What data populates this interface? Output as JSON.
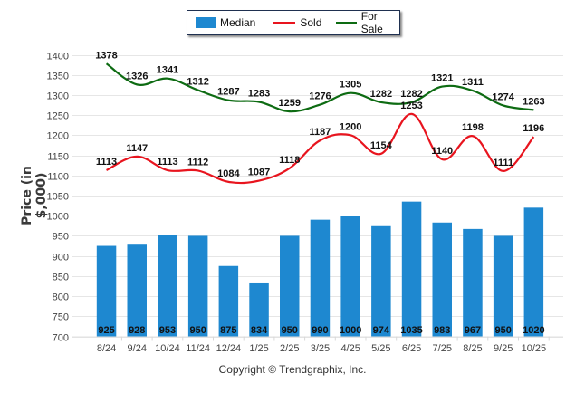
{
  "chart_data": {
    "type": "bar",
    "title": "",
    "xlabel": "",
    "ylabel": "Price (in $,000)",
    "ylim": [
      700,
      1400
    ],
    "ytick_step": 50,
    "yticks": [
      "700",
      "750",
      "800",
      "850",
      "900",
      "950",
      "1000",
      "1050",
      "1100",
      "1150",
      "1200",
      "1250",
      "1300",
      "1350",
      "1400"
    ],
    "grid": true,
    "legend_position": "top-center",
    "categories": [
      "8/24",
      "9/24",
      "10/24",
      "11/24",
      "12/24",
      "1/25",
      "2/25",
      "3/25",
      "4/25",
      "5/25",
      "6/25",
      "7/25",
      "8/25",
      "9/25",
      "10/25"
    ],
    "series": [
      {
        "name": "Median",
        "type": "bar",
        "color": "#1e88d0",
        "values": [
          925,
          928,
          953,
          950,
          875,
          834,
          950,
          990,
          1000,
          974,
          1035,
          983,
          967,
          950,
          1020
        ]
      },
      {
        "name": "Sold",
        "type": "line",
        "color": "#e8141e",
        "values": [
          1113,
          1147,
          1113,
          1112,
          1084,
          1087,
          1118,
          1187,
          1200,
          1154,
          1253,
          1140,
          1198,
          1111,
          1196
        ]
      },
      {
        "name": "For Sale",
        "type": "line",
        "color": "#0d6b12",
        "values": [
          1378,
          1326,
          1341,
          1312,
          1287,
          1283,
          1259,
          1276,
          1305,
          1282,
          1282,
          1321,
          1311,
          1274,
          1263
        ]
      }
    ]
  },
  "legend": {
    "median": "Median",
    "sold": "Sold",
    "for_sale": "For Sale"
  },
  "footer": {
    "copyright": "Copyright © Trendgraphix, Inc."
  }
}
